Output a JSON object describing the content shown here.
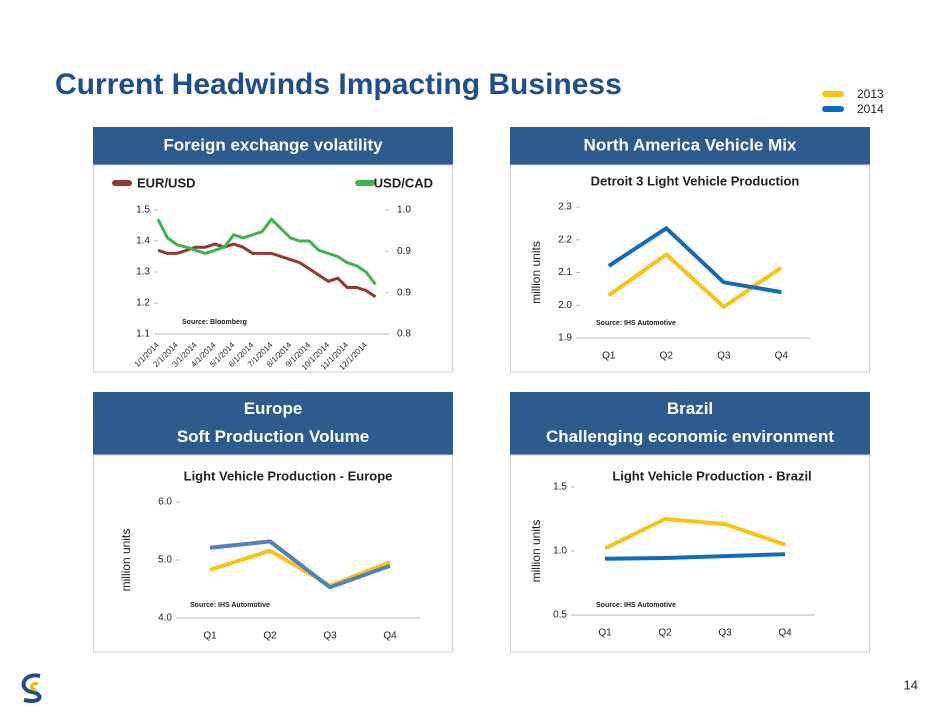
{
  "title": "Current Headwinds Impacting Business",
  "page_number": "14",
  "chart_data": [
    {
      "type": "line",
      "header": [
        "Foreign exchange volatility"
      ],
      "note": "Source: Bloomberg",
      "x": [
        "1/1/2014",
        null,
        "2/1/2014",
        null,
        "3/1/2014",
        null,
        "4/1/2014",
        null,
        "5/1/2014",
        null,
        "6/1/2014",
        null,
        "7/1/2014",
        null,
        "8/1/2014",
        null,
        "9/1/2014",
        null,
        "10/1/2014",
        null,
        "11/1/2014",
        null,
        "12/1/2014",
        null
      ],
      "series": [
        {
          "name": "EUR/USD",
          "color": "#953735",
          "values": [
            1.37,
            1.36,
            1.36,
            1.37,
            1.38,
            1.38,
            1.39,
            1.38,
            1.39,
            1.38,
            1.36,
            1.36,
            1.36,
            1.35,
            1.34,
            1.33,
            1.31,
            1.29,
            1.27,
            1.28,
            1.25,
            1.25,
            1.24,
            1.22
          ]
        },
        {
          "name": "USD/CAD",
          "color": "#3cb44b",
          "axis": "y2",
          "values": [
            0.985,
            0.955,
            0.944,
            0.94,
            0.935,
            0.93,
            0.935,
            0.94,
            0.96,
            0.955,
            0.96,
            0.965,
            0.985,
            0.97,
            0.955,
            0.95,
            0.95,
            0.935,
            0.93,
            0.925,
            0.915,
            0.91,
            0.9,
            0.88
          ]
        }
      ],
      "ylim": [
        1.1,
        1.5
      ],
      "yticks": [
        1.1,
        1.2,
        1.3,
        1.4,
        1.5
      ],
      "y2lim": [
        0.8,
        1
      ],
      "y2ticks": [
        0.8,
        {
          "value": 0.8667,
          "label": "0.9"
        },
        {
          "value": 0.9333,
          "label": "0.9"
        },
        {
          "value": 1,
          "label": "1.0"
        }
      ],
      "grid": false
    },
    {
      "type": "line",
      "header": [
        "North America Vehicle Mix"
      ],
      "title": "Detroit 3 Light Vehicle Production",
      "ylabel": "million units",
      "note": "Source: IHS Automotive",
      "categories": [
        "Q1",
        "Q2",
        "Q3",
        "Q4"
      ],
      "series": [
        {
          "name": "2013",
          "color": "#fac214",
          "values": [
            2.03,
            2.155,
            1.995,
            2.115
          ]
        },
        {
          "name": "2014",
          "color": "#0f6cbd",
          "values": [
            2.12,
            2.235,
            2.07,
            2.04
          ]
        }
      ],
      "ylim": [
        1.9,
        2.3
      ],
      "yticks": [
        1.9,
        {
          "value": 2,
          "label": "2.0"
        },
        2.1,
        2.2,
        2.3
      ],
      "grid": false
    },
    {
      "type": "line",
      "header": [
        "Europe",
        "Soft Production Volume"
      ],
      "title": "Light Vehicle Production - Europe",
      "ylabel": "million units",
      "note": "Source: IHS Automotive",
      "categories": [
        "Q1",
        "Q2",
        "Q3",
        "Q4"
      ],
      "series": [
        {
          "name": "2013",
          "color": "#fac214",
          "values": [
            4.83,
            5.16,
            4.56,
            4.96
          ]
        },
        {
          "name": "2014",
          "color": "#4f81bd",
          "values": [
            5.21,
            5.32,
            4.53,
            4.9
          ]
        }
      ],
      "ylim": [
        4,
        6
      ],
      "yticks": [
        {
          "value": 4,
          "label": "4.0"
        },
        {
          "value": 5,
          "label": "5.0"
        },
        {
          "value": 6,
          "label": "6.0"
        }
      ],
      "grid": false
    },
    {
      "type": "line",
      "header": [
        "Brazil",
        "Challenging economic environment"
      ],
      "title": "Light Vehicle Production - Brazil",
      "ylabel": "million units",
      "note": "Source: IHS Automotive",
      "categories": [
        "Q1",
        "Q2",
        "Q3",
        "Q4"
      ],
      "series": [
        {
          "name": "2013",
          "color": "#fac214",
          "values": [
            1.02,
            1.25,
            1.21,
            1.05
          ]
        },
        {
          "name": "2014",
          "color": "#0f6cbd",
          "values": [
            0.94,
            0.945,
            0.96,
            0.975
          ]
        }
      ],
      "ylim": [
        0.5,
        1.5
      ],
      "yticks": [
        0.5,
        {
          "value": 1,
          "label": "1.0"
        },
        1.5
      ],
      "grid": false
    }
  ]
}
